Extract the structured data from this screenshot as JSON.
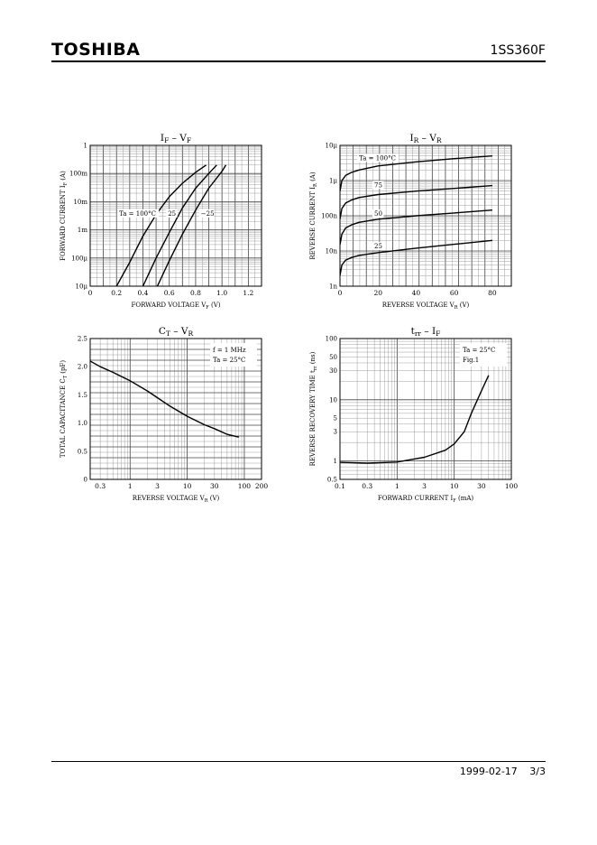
{
  "header": {
    "brand": "TOSHIBA",
    "part_number": "1SS360F"
  },
  "footer": {
    "date": "1999-02-17",
    "page": "3/3"
  },
  "chart_data": [
    {
      "id": "if_vf",
      "type": "line",
      "title_main": "I",
      "title_main_sub": "F",
      "title_sep": " – ",
      "title_second": "V",
      "title_second_sub": "F",
      "xlabel": "FORWARD VOLTAGE",
      "xlabel_symbol": "V",
      "xlabel_symbol_sub": "F",
      "xlabel_unit": "(V)",
      "ylabel": "FORWARD CURRENT",
      "ylabel_symbol": "I",
      "ylabel_symbol_sub": "F",
      "ylabel_unit": "(A)",
      "xscale": "linear",
      "yscale": "log",
      "xlim": [
        0,
        1.3
      ],
      "ylim": [
        1e-05,
        1
      ],
      "xticks": [
        {
          "v": 0,
          "label": "0"
        },
        {
          "v": 0.2,
          "label": "0.2"
        },
        {
          "v": 0.4,
          "label": "0.4"
        },
        {
          "v": 0.6,
          "label": "0.6"
        },
        {
          "v": 0.8,
          "label": "0.8"
        },
        {
          "v": 1.0,
          "label": "1.0"
        },
        {
          "v": 1.2,
          "label": "1.2"
        }
      ],
      "yticks": [
        {
          "v": 1,
          "label": "1"
        },
        {
          "v": 0.1,
          "label": "100m"
        },
        {
          "v": 0.01,
          "label": "10m"
        },
        {
          "v": 0.001,
          "label": "1m"
        },
        {
          "v": 0.0001,
          "label": "100μ"
        },
        {
          "v": 1e-05,
          "label": "10μ"
        }
      ],
      "grid": "log-minor",
      "annotations": [
        {
          "text": "Ta = 100°C",
          "x": 0.22,
          "y": 0.0032
        },
        {
          "text": "25",
          "x": 0.59,
          "y": 0.0032
        },
        {
          "text": "−25",
          "x": 0.84,
          "y": 0.0032
        }
      ],
      "series": [
        {
          "name": "Ta = 100°C",
          "x": [
            0.2,
            0.3,
            0.4,
            0.5,
            0.6,
            0.7,
            0.8,
            0.88
          ],
          "y": [
            1e-05,
            7e-05,
            0.0006,
            0.0035,
            0.015,
            0.045,
            0.11,
            0.2
          ]
        },
        {
          "name": "25",
          "x": [
            0.4,
            0.5,
            0.6,
            0.7,
            0.8,
            0.9,
            0.96
          ],
          "y": [
            1e-05,
            0.0001,
            0.0008,
            0.006,
            0.03,
            0.1,
            0.2
          ]
        },
        {
          "name": "−25",
          "x": [
            0.51,
            0.6,
            0.7,
            0.8,
            0.9,
            1.0,
            1.03
          ],
          "y": [
            1e-05,
            8e-05,
            0.0007,
            0.005,
            0.03,
            0.12,
            0.2
          ]
        }
      ]
    },
    {
      "id": "ir_vr",
      "type": "line",
      "title_main": "I",
      "title_main_sub": "R",
      "title_sep": " – ",
      "title_second": "V",
      "title_second_sub": "R",
      "xlabel": "REVERSE VOLTAGE",
      "xlabel_symbol": "V",
      "xlabel_symbol_sub": "R",
      "xlabel_unit": "(V)",
      "ylabel": "REVERSE CURRENT",
      "ylabel_symbol": "I",
      "ylabel_symbol_sub": "R",
      "ylabel_unit": "(A)",
      "xscale": "linear",
      "yscale": "log",
      "xlim": [
        0,
        90
      ],
      "ylim": [
        1e-09,
        1e-05
      ],
      "xticks": [
        {
          "v": 0,
          "label": "0"
        },
        {
          "v": 20,
          "label": "20"
        },
        {
          "v": 40,
          "label": "40"
        },
        {
          "v": 60,
          "label": "60"
        },
        {
          "v": 80,
          "label": "80"
        }
      ],
      "yticks": [
        {
          "v": 1e-05,
          "label": "10μ"
        },
        {
          "v": 1e-06,
          "label": "1μ"
        },
        {
          "v": 1e-07,
          "label": "100n"
        },
        {
          "v": 1e-08,
          "label": "10n"
        },
        {
          "v": 1e-09,
          "label": "1n"
        }
      ],
      "grid": "log-minor",
      "annotations": [
        {
          "text": "Ta = 100°C",
          "x": 10,
          "y": 3.8e-06
        },
        {
          "text": "75",
          "x": 18,
          "y": 6.5e-07
        },
        {
          "text": "50",
          "x": 18,
          "y": 1e-07
        },
        {
          "text": "25",
          "x": 18,
          "y": 1.2e-08
        }
      ],
      "series": [
        {
          "name": "Ta = 100°C",
          "x": [
            0,
            1,
            3,
            6,
            10,
            20,
            40,
            60,
            80
          ],
          "y": [
            5e-07,
            1e-06,
            1.4e-06,
            1.7e-06,
            2e-06,
            2.6e-06,
            3.4e-06,
            4.2e-06,
            5e-06
          ]
        },
        {
          "name": "75",
          "x": [
            0,
            1,
            3,
            6,
            10,
            20,
            40,
            60,
            80
          ],
          "y": [
            8e-08,
            1.6e-07,
            2.3e-07,
            2.8e-07,
            3.3e-07,
            4e-07,
            5e-07,
            6e-07,
            7.2e-07
          ]
        },
        {
          "name": "50",
          "x": [
            0,
            1,
            3,
            6,
            10,
            20,
            40,
            60,
            80
          ],
          "y": [
            1.5e-08,
            3e-08,
            4.5e-08,
            5.5e-08,
            6.5e-08,
            8e-08,
            1e-07,
            1.2e-07,
            1.45e-07
          ]
        },
        {
          "name": "25",
          "x": [
            0,
            1,
            3,
            6,
            10,
            20,
            40,
            60,
            80
          ],
          "y": [
            2e-09,
            4e-09,
            5.5e-09,
            6.5e-09,
            7.5e-09,
            9e-09,
            1.2e-08,
            1.55e-08,
            2e-08
          ]
        }
      ]
    },
    {
      "id": "ct_vr",
      "type": "line",
      "title_main": "C",
      "title_main_sub": "T",
      "title_sep": " – ",
      "title_second": "V",
      "title_second_sub": "R",
      "xlabel": "REVERSE VOLTAGE",
      "xlabel_symbol": "V",
      "xlabel_symbol_sub": "R",
      "xlabel_unit": "(V)",
      "ylabel": "TOTAL CAPACITANCE",
      "ylabel_symbol": "C",
      "ylabel_symbol_sub": "T",
      "ylabel_unit": "(pF)",
      "xscale": "log",
      "yscale": "linear",
      "xlim": [
        0.2,
        200
      ],
      "ylim": [
        0,
        2.5
      ],
      "xticks": [
        {
          "v": 0.3,
          "label": "0.3"
        },
        {
          "v": 1,
          "label": "1"
        },
        {
          "v": 3,
          "label": "3"
        },
        {
          "v": 10,
          "label": "10"
        },
        {
          "v": 30,
          "label": "30"
        },
        {
          "v": 100,
          "label": "100"
        },
        {
          "v": 200,
          "label": "200"
        }
      ],
      "yticks": [
        {
          "v": 0,
          "label": "0"
        },
        {
          "v": 0.5,
          "label": "0.5"
        },
        {
          "v": 1.0,
          "label": "1.0"
        },
        {
          "v": 1.5,
          "label": "1.5"
        },
        {
          "v": 2.0,
          "label": "2.0"
        },
        {
          "v": 2.5,
          "label": "2.5"
        }
      ],
      "grid": "log-minor",
      "notes": [
        "f = 1 MHz",
        "Ta = 25°C"
      ],
      "series": [
        {
          "name": "",
          "x": [
            0.2,
            0.3,
            0.5,
            1,
            2,
            3,
            5,
            10,
            20,
            30,
            50,
            80
          ],
          "y": [
            2.1,
            2.0,
            1.9,
            1.75,
            1.57,
            1.45,
            1.3,
            1.12,
            0.97,
            0.9,
            0.8,
            0.75
          ]
        }
      ]
    },
    {
      "id": "trr_if",
      "type": "line",
      "title_main": "t",
      "title_main_sub": "rr",
      "title_sep": " – ",
      "title_second": "I",
      "title_second_sub": "F",
      "xlabel": "FORWARD CURRENT",
      "xlabel_symbol": "I",
      "xlabel_symbol_sub": "F",
      "xlabel_unit": "(mA)",
      "ylabel": "REVERSE RECOVERY TIME",
      "ylabel_symbol": "t",
      "ylabel_symbol_sub": "rr",
      "ylabel_unit": "(ns)",
      "xscale": "log",
      "yscale": "log",
      "xlim": [
        0.1,
        100
      ],
      "ylim": [
        0.5,
        100
      ],
      "xticks": [
        {
          "v": 0.1,
          "label": "0.1"
        },
        {
          "v": 0.3,
          "label": "0.3"
        },
        {
          "v": 1,
          "label": "1"
        },
        {
          "v": 3,
          "label": "3"
        },
        {
          "v": 10,
          "label": "10"
        },
        {
          "v": 30,
          "label": "30"
        },
        {
          "v": 100,
          "label": "100"
        }
      ],
      "yticks": [
        {
          "v": 100,
          "label": "100"
        },
        {
          "v": 50,
          "label": "50"
        },
        {
          "v": 30,
          "label": "30"
        },
        {
          "v": 10,
          "label": "10"
        },
        {
          "v": 5,
          "label": "5"
        },
        {
          "v": 3,
          "label": "3"
        },
        {
          "v": 1,
          "label": "1"
        },
        {
          "v": 0.5,
          "label": "0.5"
        }
      ],
      "grid": "log-minor",
      "notes": [
        "Ta = 25°C",
        "Fig.1"
      ],
      "series": [
        {
          "name": "",
          "x": [
            0.1,
            0.3,
            1,
            3,
            7,
            10,
            15,
            20,
            30,
            40
          ],
          "y": [
            0.95,
            0.92,
            0.96,
            1.15,
            1.5,
            1.9,
            3,
            6,
            14,
            25
          ]
        }
      ]
    }
  ]
}
